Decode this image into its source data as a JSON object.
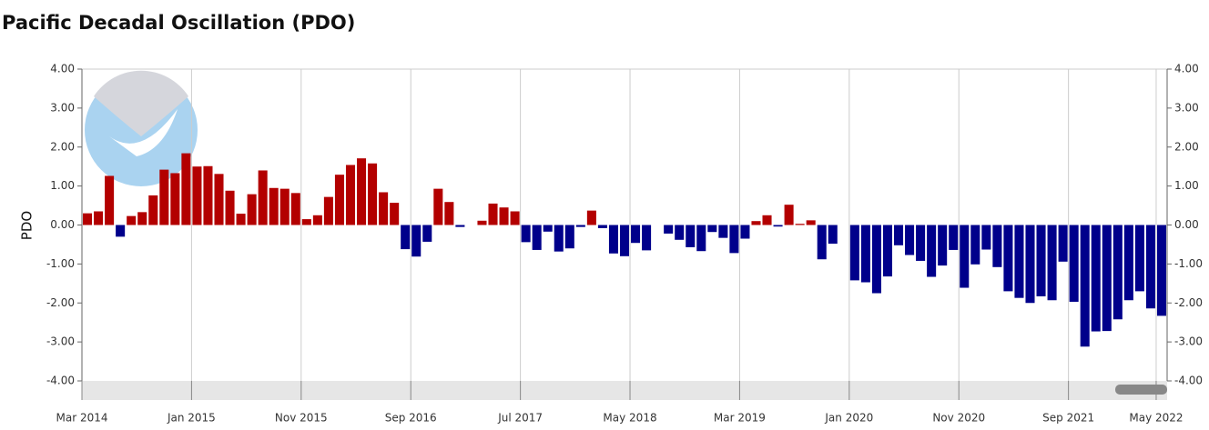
{
  "chart_data": {
    "type": "bar",
    "title": "Pacific Decadal Oscillation (PDO)",
    "y_label": "PDO",
    "categories": [
      "Mar 2014",
      null,
      null,
      null,
      null,
      null,
      null,
      null,
      null,
      null,
      "Jan 2015",
      null,
      null,
      null,
      null,
      null,
      null,
      null,
      null,
      null,
      "Nov 2015",
      null,
      null,
      null,
      null,
      null,
      null,
      null,
      null,
      null,
      "Sep 2016",
      null,
      null,
      null,
      null,
      null,
      null,
      null,
      null,
      null,
      "Jul 2017",
      null,
      null,
      null,
      null,
      null,
      null,
      null,
      null,
      null,
      "May 2018",
      null,
      null,
      null,
      null,
      null,
      null,
      null,
      null,
      null,
      "Mar 2019",
      null,
      null,
      null,
      null,
      null,
      null,
      null,
      null,
      null,
      "Jan 2020",
      null,
      null,
      null,
      null,
      null,
      null,
      null,
      null,
      null,
      "Nov 2020",
      null,
      null,
      null,
      null,
      null,
      null,
      null,
      null,
      null,
      "Sep 2021",
      null,
      null,
      null,
      null,
      null,
      null,
      null,
      "May 2022"
    ],
    "values": [
      0.3,
      0.35,
      1.26,
      -0.3,
      0.23,
      0.33,
      0.76,
      1.42,
      1.33,
      1.84,
      1.5,
      1.51,
      1.31,
      0.88,
      0.29,
      0.79,
      1.4,
      0.95,
      0.93,
      0.82,
      0.15,
      0.25,
      0.72,
      1.29,
      1.54,
      1.71,
      1.58,
      0.84,
      0.57,
      -0.62,
      -0.81,
      -0.43,
      0.93,
      0.59,
      -0.05,
      0.0,
      0.11,
      0.55,
      0.45,
      0.35,
      -0.44,
      -0.64,
      -0.17,
      -0.68,
      -0.6,
      -0.05,
      0.37,
      -0.08,
      -0.73,
      -0.8,
      -0.46,
      -0.65,
      0.0,
      -0.22,
      -0.38,
      -0.57,
      -0.67,
      -0.18,
      -0.33,
      -0.72,
      -0.35,
      0.1,
      0.25,
      -0.04,
      0.52,
      0.03,
      0.12,
      -0.88,
      -0.48,
      0.0,
      -1.42,
      -1.47,
      -1.75,
      -1.32,
      -0.52,
      -0.77,
      -0.92,
      -1.33,
      -1.04,
      -0.64,
      -1.61,
      -1.01,
      -0.63,
      -1.08,
      -1.7,
      -1.87,
      -2.0,
      -1.83,
      -1.93,
      -0.94,
      -1.97,
      -3.12,
      -2.73,
      -2.72,
      -2.42,
      -1.93,
      -1.7,
      -2.14,
      -2.33
    ],
    "positive_color": "#b30000",
    "negative_color": "#00008b",
    "ylim": [
      -4,
      4
    ],
    "yticks": [
      {
        "value": -4,
        "label": "-4.00"
      },
      {
        "value": -3,
        "label": "-3.00"
      },
      {
        "value": -2,
        "label": "-2.00"
      },
      {
        "value": -1,
        "label": "-1.00"
      },
      {
        "value": 0,
        "label": "0.00"
      },
      {
        "value": 1,
        "label": "1.00"
      },
      {
        "value": 2,
        "label": "2.00"
      },
      {
        "value": 3,
        "label": "3.00"
      },
      {
        "value": 4,
        "label": "4.00"
      }
    ],
    "right_axis": true,
    "grid": "x"
  }
}
